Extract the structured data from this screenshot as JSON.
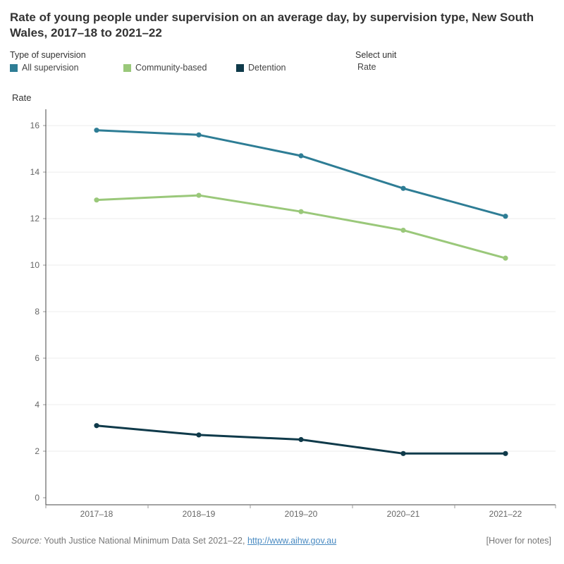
{
  "title": "Rate of young people under supervision on an average day, by supervision type, New South Wales, 2017–18 to 2021–22",
  "legend": {
    "heading": "Type of supervision",
    "items": [
      {
        "label": "All supervision",
        "color": "#2e7d95"
      },
      {
        "label": "Community-based",
        "color": "#9ac87a"
      },
      {
        "label": "Detention",
        "color": "#0f3a4a"
      }
    ]
  },
  "unit_selector": {
    "heading": "Select unit",
    "value": "Rate"
  },
  "footer": {
    "source_label": "Source:",
    "source_text": " Youth Justice National Minimum Data Set 2021–22, ",
    "link": "http://www.aihw.gov.au",
    "hover_notes": "[Hover for notes]"
  },
  "chart_data": {
    "type": "line",
    "title": "Rate of young people under supervision on an average day, by supervision type, New South Wales, 2017–18 to 2021–22",
    "xlabel": "",
    "ylabel": "Rate",
    "categories": [
      "2017–18",
      "2018–19",
      "2019–20",
      "2020–21",
      "2021–22"
    ],
    "ylim": [
      0,
      16.7
    ],
    "yticks": [
      0,
      2,
      4,
      6,
      8,
      10,
      12,
      14,
      16
    ],
    "grid": true,
    "legend_position": "top-left",
    "series": [
      {
        "name": "All supervision",
        "color": "#2e7d95",
        "values": [
          15.8,
          15.6,
          14.7,
          13.3,
          12.1
        ]
      },
      {
        "name": "Community-based",
        "color": "#9ac87a",
        "values": [
          12.8,
          13.0,
          12.3,
          11.5,
          10.3
        ]
      },
      {
        "name": "Detention",
        "color": "#0f3a4a",
        "values": [
          3.1,
          2.7,
          2.5,
          1.9,
          1.9
        ]
      }
    ]
  }
}
